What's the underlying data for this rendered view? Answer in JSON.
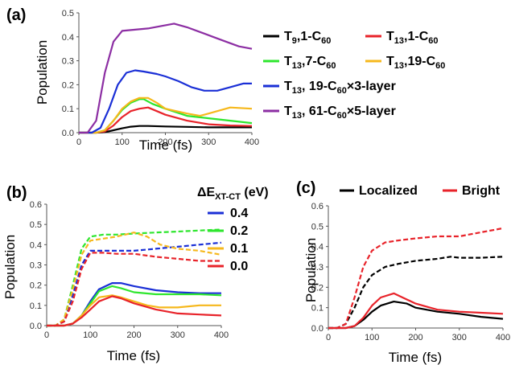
{
  "chart_data": [
    {
      "panel_label": "(a)",
      "type": "line",
      "xlabel": "Time (fs)",
      "ylabel": "Population",
      "xlim": [
        0,
        400
      ],
      "ylim": [
        0,
        0.5
      ],
      "xticks": [
        "0",
        "100",
        "200",
        "300",
        "400"
      ],
      "yticks": [
        "0.0",
        "0.1",
        "0.2",
        "0.3",
        "0.4",
        "0.5"
      ],
      "legend_position": "right",
      "series": [
        {
          "name": "T9,1-C60",
          "label_main": "T",
          "label_sub": "9",
          "label_rest": ",1-C",
          "label_sub2": "60",
          "color": "#000000",
          "dash": false,
          "x": [
            0,
            40,
            60,
            80,
            100,
            120,
            140,
            160,
            200,
            250,
            300,
            350,
            400
          ],
          "y": [
            0,
            0,
            0.002,
            0.01,
            0.018,
            0.025,
            0.028,
            0.028,
            0.026,
            0.024,
            0.022,
            0.022,
            0.022
          ]
        },
        {
          "name": "T13,1-C60",
          "label_main": "T",
          "label_sub": "13",
          "label_rest": ",1-C",
          "label_sub2": "60",
          "color": "#e8232a",
          "dash": false,
          "x": [
            0,
            40,
            60,
            80,
            100,
            120,
            140,
            160,
            180,
            200,
            250,
            300,
            350,
            400
          ],
          "y": [
            0,
            0,
            0.005,
            0.03,
            0.065,
            0.09,
            0.1,
            0.105,
            0.09,
            0.075,
            0.05,
            0.035,
            0.03,
            0.028
          ]
        },
        {
          "name": "T13,7-C60",
          "label_main": "T",
          "label_sub": "13",
          "label_rest": ",7-C",
          "label_sub2": "60",
          "color": "#2ee62e",
          "dash": false,
          "x": [
            0,
            40,
            60,
            80,
            100,
            120,
            140,
            150,
            170,
            200,
            250,
            300,
            350,
            400
          ],
          "y": [
            0,
            0,
            0.01,
            0.05,
            0.095,
            0.125,
            0.14,
            0.14,
            0.12,
            0.1,
            0.07,
            0.06,
            0.05,
            0.04
          ]
        },
        {
          "name": "T13,19-C60",
          "label_main": "T",
          "label_sub": "13",
          "label_rest": ",19-C",
          "label_sub2": "60",
          "color": "#f6b81c",
          "dash": false,
          "x": [
            0,
            40,
            60,
            80,
            100,
            120,
            140,
            160,
            180,
            200,
            250,
            280,
            300,
            350,
            400
          ],
          "y": [
            0,
            0,
            0.01,
            0.05,
            0.1,
            0.13,
            0.145,
            0.145,
            0.125,
            0.1,
            0.08,
            0.07,
            0.08,
            0.105,
            0.1
          ]
        },
        {
          "name": "T13, 19-C60×3-layer",
          "label_main": "T",
          "label_sub": "13",
          "label_rest": ", 19-C",
          "label_sub2": "60",
          "label_tail": "×3-layer",
          "color": "#1a2fd6",
          "dash": false,
          "x": [
            0,
            30,
            50,
            70,
            90,
            110,
            130,
            150,
            180,
            200,
            230,
            260,
            290,
            320,
            350,
            380,
            400
          ],
          "y": [
            0,
            0,
            0.02,
            0.1,
            0.2,
            0.25,
            0.26,
            0.255,
            0.245,
            0.235,
            0.215,
            0.19,
            0.175,
            0.175,
            0.19,
            0.205,
            0.205
          ]
        },
        {
          "name": "T13, 61-C60×5-layer",
          "label_main": "T",
          "label_sub": "13",
          "label_rest": ", 61-C",
          "label_sub2": "60",
          "label_tail": "×5-layer",
          "color": "#8c2ea3",
          "dash": false,
          "x": [
            0,
            20,
            40,
            60,
            80,
            100,
            130,
            160,
            190,
            220,
            250,
            280,
            310,
            340,
            370,
            400
          ],
          "y": [
            0,
            0,
            0.05,
            0.25,
            0.38,
            0.425,
            0.43,
            0.435,
            0.445,
            0.455,
            0.44,
            0.42,
            0.4,
            0.38,
            0.36,
            0.35
          ]
        }
      ]
    },
    {
      "panel_label": "(b)",
      "type": "line",
      "xlabel": "Time (fs)",
      "ylabel": "Population",
      "xlim": [
        0,
        400
      ],
      "ylim": [
        0,
        0.6
      ],
      "xticks": [
        "0",
        "100",
        "200",
        "300",
        "400"
      ],
      "yticks": [
        "0.0",
        "0.1",
        "0.2",
        "0.3",
        "0.4",
        "0.5",
        "0.6"
      ],
      "legend_title_main": "ΔE",
      "legend_title_sub": "XT-CT",
      "legend_title_rest": " (eV)",
      "legend_position": "right",
      "series": [
        {
          "name": "0.4",
          "color": "#1a2fd6",
          "dash": true,
          "x": [
            0,
            20,
            40,
            60,
            80,
            100,
            130,
            160,
            200,
            250,
            300,
            350,
            400
          ],
          "y": [
            0,
            0,
            0.02,
            0.15,
            0.3,
            0.37,
            0.37,
            0.37,
            0.37,
            0.38,
            0.39,
            0.4,
            0.41
          ]
        },
        {
          "name": "0.2",
          "color": "#2ee62e",
          "dash": true,
          "x": [
            0,
            20,
            40,
            60,
            80,
            100,
            130,
            160,
            200,
            250,
            300,
            350,
            400
          ],
          "y": [
            0,
            0,
            0.03,
            0.2,
            0.38,
            0.44,
            0.45,
            0.45,
            0.455,
            0.46,
            0.465,
            0.47,
            0.475
          ]
        },
        {
          "name": "0.1",
          "color": "#f6b81c",
          "dash": true,
          "x": [
            0,
            20,
            40,
            60,
            80,
            100,
            130,
            160,
            200,
            230,
            260,
            300,
            350,
            400
          ],
          "y": [
            0,
            0,
            0.03,
            0.18,
            0.35,
            0.42,
            0.43,
            0.44,
            0.46,
            0.44,
            0.4,
            0.38,
            0.37,
            0.35
          ]
        },
        {
          "name": "0.0",
          "color": "#e8232a",
          "dash": true,
          "x": [
            0,
            20,
            40,
            60,
            80,
            100,
            130,
            160,
            200,
            250,
            300,
            350,
            400
          ],
          "y": [
            0,
            0,
            0.02,
            0.12,
            0.28,
            0.36,
            0.36,
            0.355,
            0.355,
            0.34,
            0.33,
            0.32,
            0.32
          ]
        },
        {
          "name": "0.4",
          "color": "#1a2fd6",
          "dash": false,
          "x": [
            0,
            40,
            60,
            80,
            100,
            120,
            150,
            170,
            200,
            250,
            300,
            350,
            400
          ],
          "y": [
            0,
            0,
            0.01,
            0.05,
            0.12,
            0.18,
            0.21,
            0.21,
            0.195,
            0.175,
            0.165,
            0.16,
            0.16
          ]
        },
        {
          "name": "0.2",
          "color": "#2ee62e",
          "dash": false,
          "x": [
            0,
            40,
            60,
            80,
            100,
            120,
            150,
            170,
            200,
            250,
            300,
            350,
            400
          ],
          "y": [
            0,
            0,
            0.01,
            0.05,
            0.11,
            0.17,
            0.195,
            0.185,
            0.165,
            0.155,
            0.155,
            0.155,
            0.15
          ]
        },
        {
          "name": "0.1",
          "color": "#f6b81c",
          "dash": false,
          "x": [
            0,
            40,
            60,
            80,
            100,
            120,
            150,
            170,
            200,
            230,
            260,
            300,
            350,
            400
          ],
          "y": [
            0,
            0,
            0.01,
            0.05,
            0.1,
            0.14,
            0.15,
            0.14,
            0.12,
            0.1,
            0.09,
            0.09,
            0.1,
            0.1
          ]
        },
        {
          "name": "0.0",
          "color": "#e8232a",
          "dash": false,
          "x": [
            0,
            40,
            60,
            80,
            100,
            120,
            150,
            170,
            200,
            250,
            300,
            350,
            400
          ],
          "y": [
            0,
            0,
            0.01,
            0.04,
            0.08,
            0.12,
            0.145,
            0.135,
            0.11,
            0.08,
            0.06,
            0.055,
            0.05
          ]
        }
      ]
    },
    {
      "panel_label": "(c)",
      "type": "line",
      "xlabel": "Time (fs)",
      "ylabel": "Population",
      "xlim": [
        0,
        400
      ],
      "ylim": [
        0,
        0.6
      ],
      "xticks": [
        "0",
        "100",
        "200",
        "300",
        "400"
      ],
      "yticks": [
        "0.0",
        "0.1",
        "0.2",
        "0.3",
        "0.4",
        "0.5",
        "0.6"
      ],
      "legend_position": "top",
      "legend": [
        {
          "name": "Localized",
          "color": "#000000"
        },
        {
          "name": "Bright",
          "color": "#e8232a"
        }
      ],
      "series": [
        {
          "name": "Localized",
          "color": "#000000",
          "dash": true,
          "x": [
            0,
            20,
            40,
            60,
            80,
            100,
            130,
            160,
            200,
            250,
            280,
            300,
            350,
            400
          ],
          "y": [
            0,
            0,
            0.02,
            0.1,
            0.2,
            0.26,
            0.3,
            0.315,
            0.33,
            0.34,
            0.35,
            0.345,
            0.345,
            0.35
          ]
        },
        {
          "name": "Bright",
          "color": "#e8232a",
          "dash": true,
          "x": [
            0,
            20,
            40,
            60,
            80,
            100,
            130,
            160,
            200,
            250,
            300,
            350,
            400
          ],
          "y": [
            0,
            0,
            0.02,
            0.15,
            0.3,
            0.38,
            0.42,
            0.43,
            0.44,
            0.45,
            0.45,
            0.47,
            0.49
          ]
        },
        {
          "name": "Localized",
          "color": "#000000",
          "dash": false,
          "x": [
            0,
            40,
            60,
            80,
            100,
            120,
            150,
            180,
            200,
            250,
            300,
            350,
            400
          ],
          "y": [
            0,
            0,
            0.01,
            0.04,
            0.08,
            0.11,
            0.13,
            0.12,
            0.1,
            0.08,
            0.07,
            0.055,
            0.045
          ]
        },
        {
          "name": "Bright",
          "color": "#e8232a",
          "dash": false,
          "x": [
            0,
            40,
            60,
            80,
            100,
            120,
            150,
            170,
            200,
            250,
            300,
            350,
            400
          ],
          "y": [
            0,
            0,
            0.01,
            0.05,
            0.11,
            0.15,
            0.17,
            0.15,
            0.12,
            0.09,
            0.08,
            0.075,
            0.07
          ]
        }
      ]
    }
  ]
}
